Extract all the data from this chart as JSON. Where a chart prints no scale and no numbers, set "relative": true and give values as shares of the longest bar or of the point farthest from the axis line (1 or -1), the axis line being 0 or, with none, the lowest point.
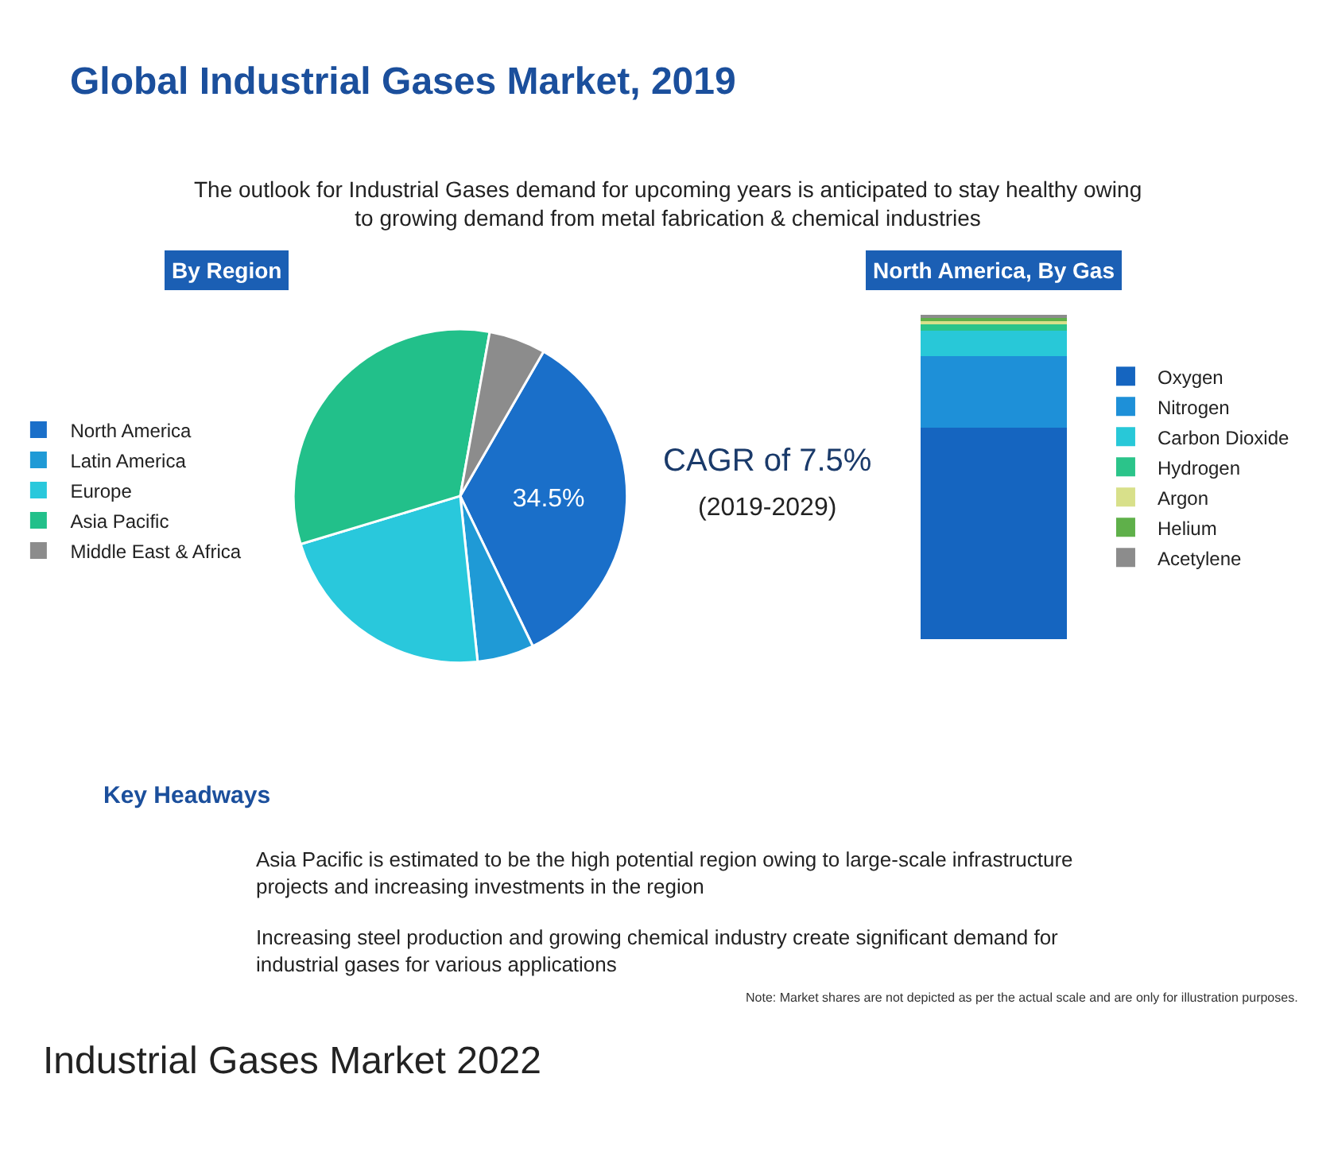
{
  "chart_data": [
    {
      "type": "pie",
      "title": "By Region",
      "annotations": [
        "Global Industrial Gases Market, 2019",
        "The outlook for Industrial Gases demand for upcoming years is anticipated to stay healthy owing to growing demand from metal fabrication & chemical industries",
        "CAGR of 7.5%",
        "(2019-2029)",
        "Key Headways",
        "Asia Pacific is estimated to be the high potential region owing to large-scale infrastructure projects and increasing investments in the region",
        "Increasing steel production and growing chemical industry create significant demand for industrial gases for various applications",
        "Note: Market shares are not depicted as per the actual scale and are only for illustration purposes.",
        "Industrial Gases Market 2022"
      ],
      "categories": [
        "North America",
        "Latin America",
        "Europe",
        "Asia Pacific",
        "Middle East & Africa"
      ],
      "values": [
        34.5,
        5.5,
        22,
        32.5,
        5.5
      ],
      "colors": [
        "#1a6fc9",
        "#1f9ad6",
        "#29c8dc",
        "#22c08a",
        "#8c8c8c"
      ],
      "value_labels": [
        "34.5%",
        null,
        null,
        null,
        null
      ],
      "legend": "left"
    },
    {
      "type": "bar",
      "title": "North America, By Gas",
      "stacked": true,
      "relative": true,
      "categories": [
        null
      ],
      "legend": "right",
      "series": [
        {
          "name": "Oxygen",
          "color": "#1565c0",
          "values": [
            0.65
          ]
        },
        {
          "name": "Nitrogen",
          "color": "#1e90d8",
          "values": [
            0.22
          ]
        },
        {
          "name": "Carbon Dioxide",
          "color": "#28c8d8",
          "values": [
            0.08
          ]
        },
        {
          "name": "Hydrogen",
          "color": "#2bc48a",
          "values": [
            0.02
          ]
        },
        {
          "name": "Argon",
          "color": "#d8e08a",
          "values": [
            0.01
          ]
        },
        {
          "name": "Helium",
          "color": "#5fb04a",
          "values": [
            0.01
          ]
        },
        {
          "name": "Acetylene",
          "color": "#8c8c8c",
          "values": [
            0.01
          ]
        }
      ]
    }
  ]
}
